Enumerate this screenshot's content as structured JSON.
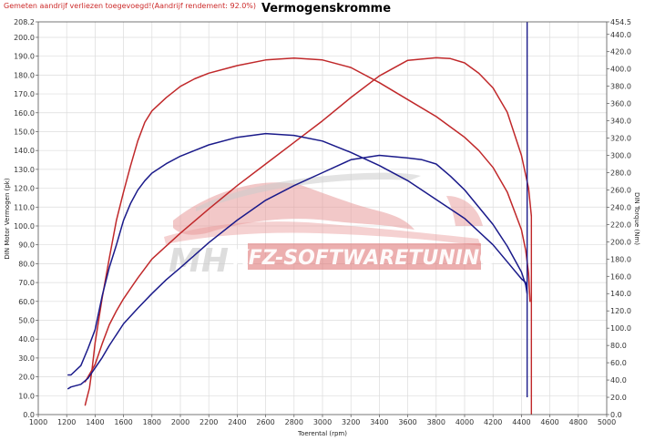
{
  "chart_data": {
    "type": "line",
    "title": "Vermogenskromme",
    "subtitle": "Gemeten aandrijf verliezen toegevoegd!(Aandrijf rendement: 92.0%)",
    "xlabel": "Toerental (rpm)",
    "ylabel_left": "DIN Motor Vermogen (pk)",
    "ylabel_right": "DIN Torque (Nm)",
    "xlim": [
      1000,
      5000
    ],
    "xticks": [
      1000,
      1200,
      1400,
      1600,
      1800,
      2000,
      2200,
      2400,
      2600,
      2800,
      3000,
      3200,
      3400,
      3600,
      3800,
      4000,
      4200,
      4400,
      4600,
      4800,
      5000
    ],
    "ylim_left": [
      0,
      208.2
    ],
    "ylim_right": [
      0,
      454.5
    ],
    "yticks_left": [
      0,
      10,
      20,
      30,
      40,
      50,
      60,
      70,
      80,
      90,
      100,
      110,
      120,
      130,
      140,
      150,
      160,
      170,
      180,
      190,
      200,
      208.2
    ],
    "ytick_labels_left": [
      "0.0",
      "10.0",
      "20.0",
      "30.0",
      "40.0",
      "50.0",
      "60.0",
      "70.0",
      "80.0",
      "90.0",
      "100.0",
      "110.0",
      "120.0",
      "130.0",
      "140.0",
      "150.0",
      "160.0",
      "170.0",
      "180.0",
      "190.0",
      "200.0",
      "208.2"
    ],
    "yticks_right": [
      0,
      20,
      40,
      60,
      80,
      100,
      120,
      140,
      160,
      180,
      200,
      220,
      240,
      260,
      280,
      300,
      320,
      340,
      360,
      380,
      400,
      420,
      440,
      454.5
    ],
    "ytick_labels_right": [
      "0.0",
      "20.0",
      "40.0",
      "60.0",
      "80.0",
      "100.0",
      "120.0",
      "140.0",
      "160.0",
      "180.0",
      "200.0",
      "220.0",
      "240.0",
      "260.0",
      "280.0",
      "300.0",
      "320.0",
      "340.0",
      "360.0",
      "380.0",
      "400.0",
      "420.0",
      "440.0",
      "454.5"
    ],
    "grid": true,
    "colors": {
      "red": "#c0282a",
      "blue": "#1a1a8a"
    },
    "series": [
      {
        "axis": "left",
        "color": "red",
        "x": [
          1330,
          1340,
          1360,
          1380,
          1400,
          1450,
          1500,
          1550,
          1600,
          1650,
          1700,
          1750,
          1800,
          1900,
          2000,
          2100,
          2200,
          2400,
          2600,
          2800,
          3000,
          3200,
          3400,
          3600,
          3800,
          4000,
          4100,
          4200,
          4300,
          4400,
          4430,
          4450,
          4460
        ],
        "y": [
          5,
          8,
          14,
          25,
          38,
          62,
          83,
          103,
          118,
          132,
          145,
          155,
          161,
          168,
          174,
          178,
          181,
          185,
          188,
          189,
          188,
          184,
          176,
          167,
          158,
          147,
          140,
          131,
          118,
          98,
          87,
          75,
          60
        ]
      },
      {
        "axis": "right",
        "color": "red",
        "x": [
          1330,
          1400,
          1450,
          1500,
          1550,
          1600,
          1650,
          1700,
          1800,
          1900,
          2000,
          2200,
          2400,
          2600,
          2800,
          3000,
          3200,
          3400,
          3600,
          3800,
          3900,
          4000,
          4100,
          4200,
          4300,
          4400,
          4450,
          4470
        ],
        "y": [
          38,
          58,
          82,
          104,
          120,
          134,
          146,
          158,
          180,
          195,
          210,
          238,
          265,
          290,
          315,
          340,
          367,
          392,
          410,
          413,
          412,
          407,
          395,
          378,
          350,
          300,
          262,
          230
        ]
      },
      {
        "axis": "left",
        "color": "blue",
        "x": [
          1210,
          1230,
          1300,
          1350,
          1400,
          1450,
          1500,
          1550,
          1600,
          1650,
          1700,
          1750,
          1800,
          1900,
          2000,
          2100,
          2200,
          2400,
          2600,
          2800,
          3000,
          3200,
          3400,
          3600,
          3800,
          3900,
          4000,
          4100,
          4200,
          4300,
          4400,
          4430,
          4440
        ],
        "y": [
          21,
          21,
          26,
          35,
          45,
          63,
          78,
          90,
          103,
          112,
          119,
          124,
          128,
          133,
          137,
          140,
          143,
          147,
          149,
          148,
          145,
          139,
          132,
          124,
          114,
          109,
          104,
          97,
          90,
          81,
          72,
          70,
          65
        ]
      },
      {
        "axis": "right",
        "color": "blue",
        "x": [
          1210,
          1230,
          1300,
          1350,
          1400,
          1450,
          1500,
          1600,
          1700,
          1800,
          1900,
          2000,
          2200,
          2400,
          2600,
          2800,
          3000,
          3200,
          3400,
          3600,
          3700,
          3800,
          3900,
          4000,
          4100,
          4200,
          4300,
          4400,
          4430,
          4440
        ],
        "y": [
          30,
          32,
          35,
          42,
          54,
          66,
          80,
          105,
          123,
          140,
          156,
          170,
          199,
          225,
          248,
          265,
          280,
          295,
          300,
          297,
          295,
          290,
          276,
          260,
          240,
          220,
          195,
          165,
          150,
          140
        ]
      }
    ],
    "vertical_lines": [
      {
        "color": "blue",
        "x": 4440,
        "y_top": 454.5,
        "y_bottom": 20,
        "axis": "right"
      },
      {
        "color": "red",
        "x": 4470,
        "y_top": 230,
        "y_bottom": 0,
        "axis": "right"
      }
    ],
    "watermark": {
      "prefix": "MH",
      "text": "KFZ-SOFTWARETUNING"
    }
  }
}
